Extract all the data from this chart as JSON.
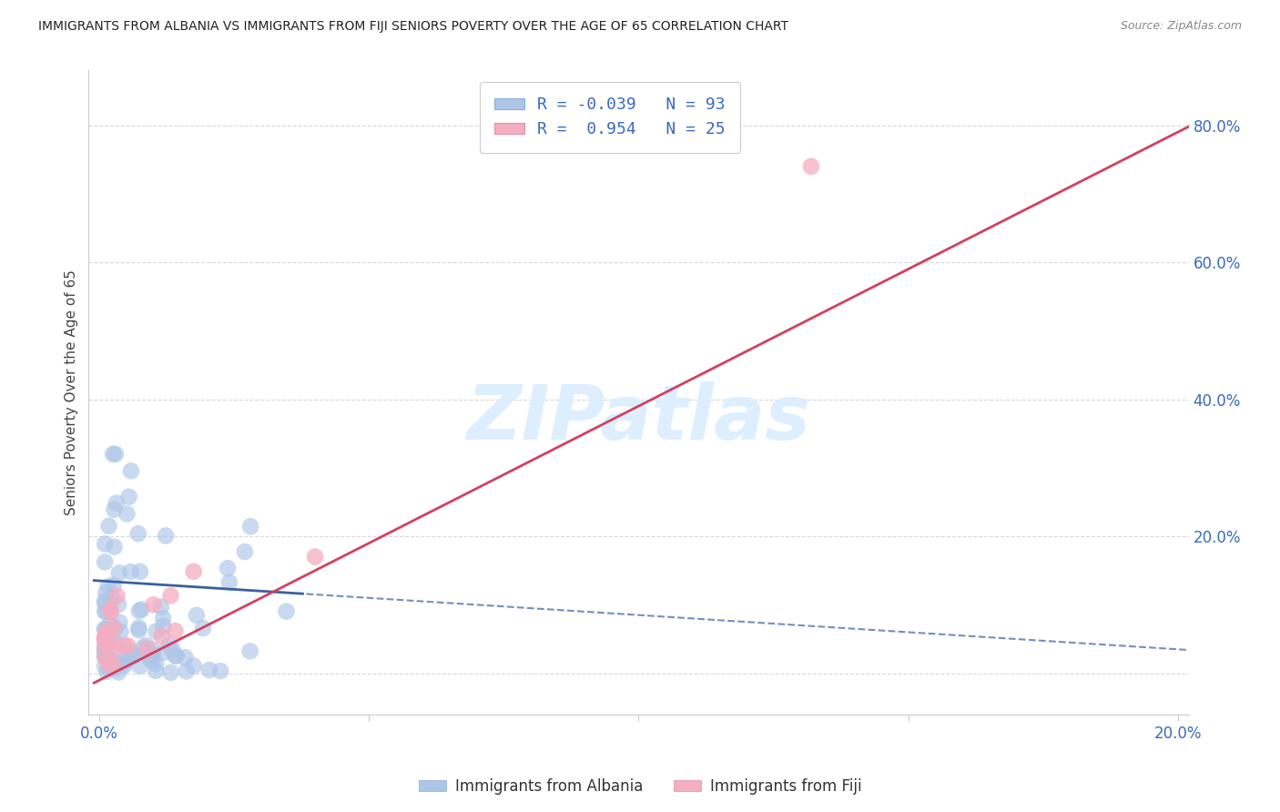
{
  "title": "IMMIGRANTS FROM ALBANIA VS IMMIGRANTS FROM FIJI SENIORS POVERTY OVER THE AGE OF 65 CORRELATION CHART",
  "source": "Source: ZipAtlas.com",
  "ylabel": "Seniors Poverty Over the Age of 65",
  "albania_color": "#adc6e8",
  "fiji_color": "#f5adc0",
  "albania_R": -0.039,
  "albania_N": 93,
  "fiji_R": 0.954,
  "fiji_N": 25,
  "background_color": "#ffffff",
  "grid_color": "#d0d0d0",
  "albania_line_color": "#3a5fa0",
  "fiji_line_color": "#d44060",
  "watermark_color": "#ddeeff",
  "watermark_text": "ZIPatlas",
  "legend_box_color": "#adc6e8",
  "legend_box_color2": "#f5adc0"
}
